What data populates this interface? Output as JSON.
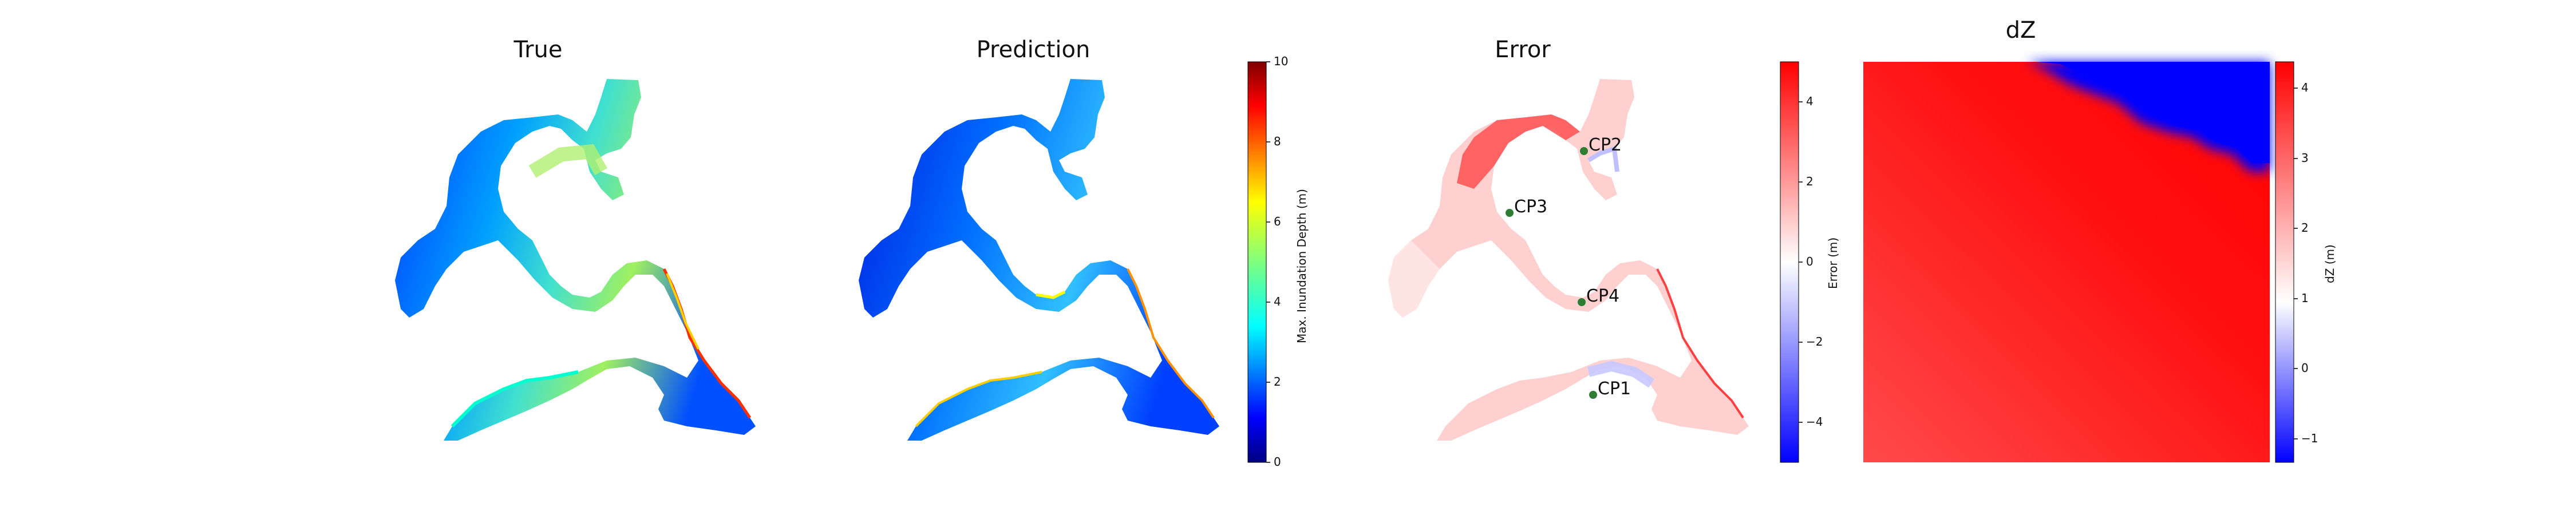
{
  "chart_data": [
    {
      "type": "heatmap",
      "title": "True",
      "description_values": "maximum inundation depth map",
      "colormap": "jet",
      "clim": [
        0,
        10
      ]
    },
    {
      "type": "heatmap",
      "title": "Prediction",
      "colormap": "jet",
      "clim": [
        0,
        10
      ],
      "colorbar": {
        "label": "Max. Inundation Depth (m)",
        "ticks": [
          "0",
          "2",
          "4",
          "6",
          "8",
          "10"
        ]
      }
    },
    {
      "type": "heatmap",
      "title": "Error",
      "colormap": "bwr",
      "clim": [
        -5,
        5
      ],
      "colorbar": {
        "label": "Error (m)",
        "ticks": [
          "−4",
          "−2",
          "0",
          "2",
          "4"
        ]
      },
      "points": [
        {
          "label": "CP2"
        },
        {
          "label": "CP3"
        },
        {
          "label": "CP4"
        },
        {
          "label": "CP1"
        }
      ],
      "point_color": "#2e7d32"
    },
    {
      "type": "heatmap",
      "title": "dZ",
      "colormap": "bwr",
      "clim": [
        -1.3,
        4.4
      ],
      "colorbar": {
        "label": "dZ (m)",
        "ticks": [
          "−1",
          "0",
          "1",
          "2",
          "3",
          "4"
        ]
      }
    }
  ],
  "colors": {
    "red": "#ff0000",
    "blue": "#0000ff",
    "marker": "#2e7d32"
  }
}
